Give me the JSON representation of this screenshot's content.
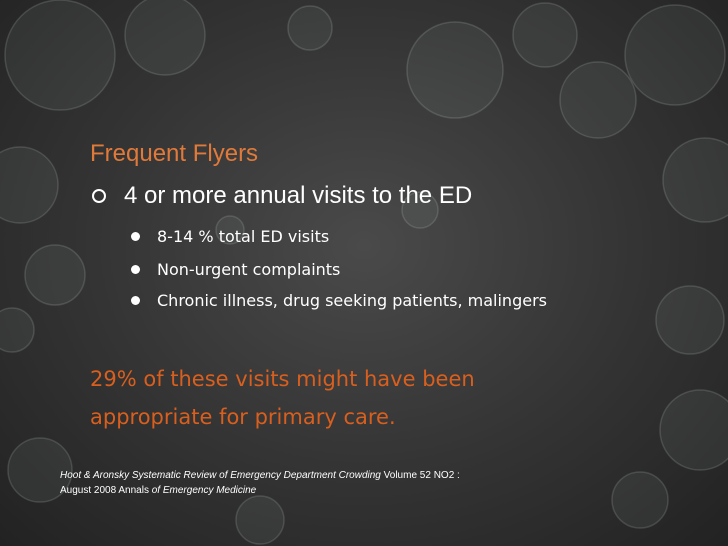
{
  "slide": {
    "title": "Frequent Flyers",
    "main_point": "4 or more annual visits to the ED",
    "sub_points": [
      " 8-14 % total ED visits",
      "Non-urgent complaints",
      " Chronic illness, drug seeking patients, malingers"
    ],
    "highlight_line1": "29% of these visits might have been",
    "highlight_line2": "appropriate for primary care.",
    "citation": {
      "title_italic": "Hoot & Aronsky Systematic Review of Emergency Department Crowding",
      "volume": " Volume 52 NO2 :",
      "date": "August 2008 Annals ",
      "journal_italic": "of Emergency Medicine"
    }
  },
  "colors": {
    "title": "#e07a3a",
    "highlight": "#d95f1e",
    "text": "#ffffff",
    "background": "#333333"
  },
  "icons": {
    "main_bullet": "ring-bullet-icon",
    "sub_bullet": "dot-bullet-icon"
  }
}
